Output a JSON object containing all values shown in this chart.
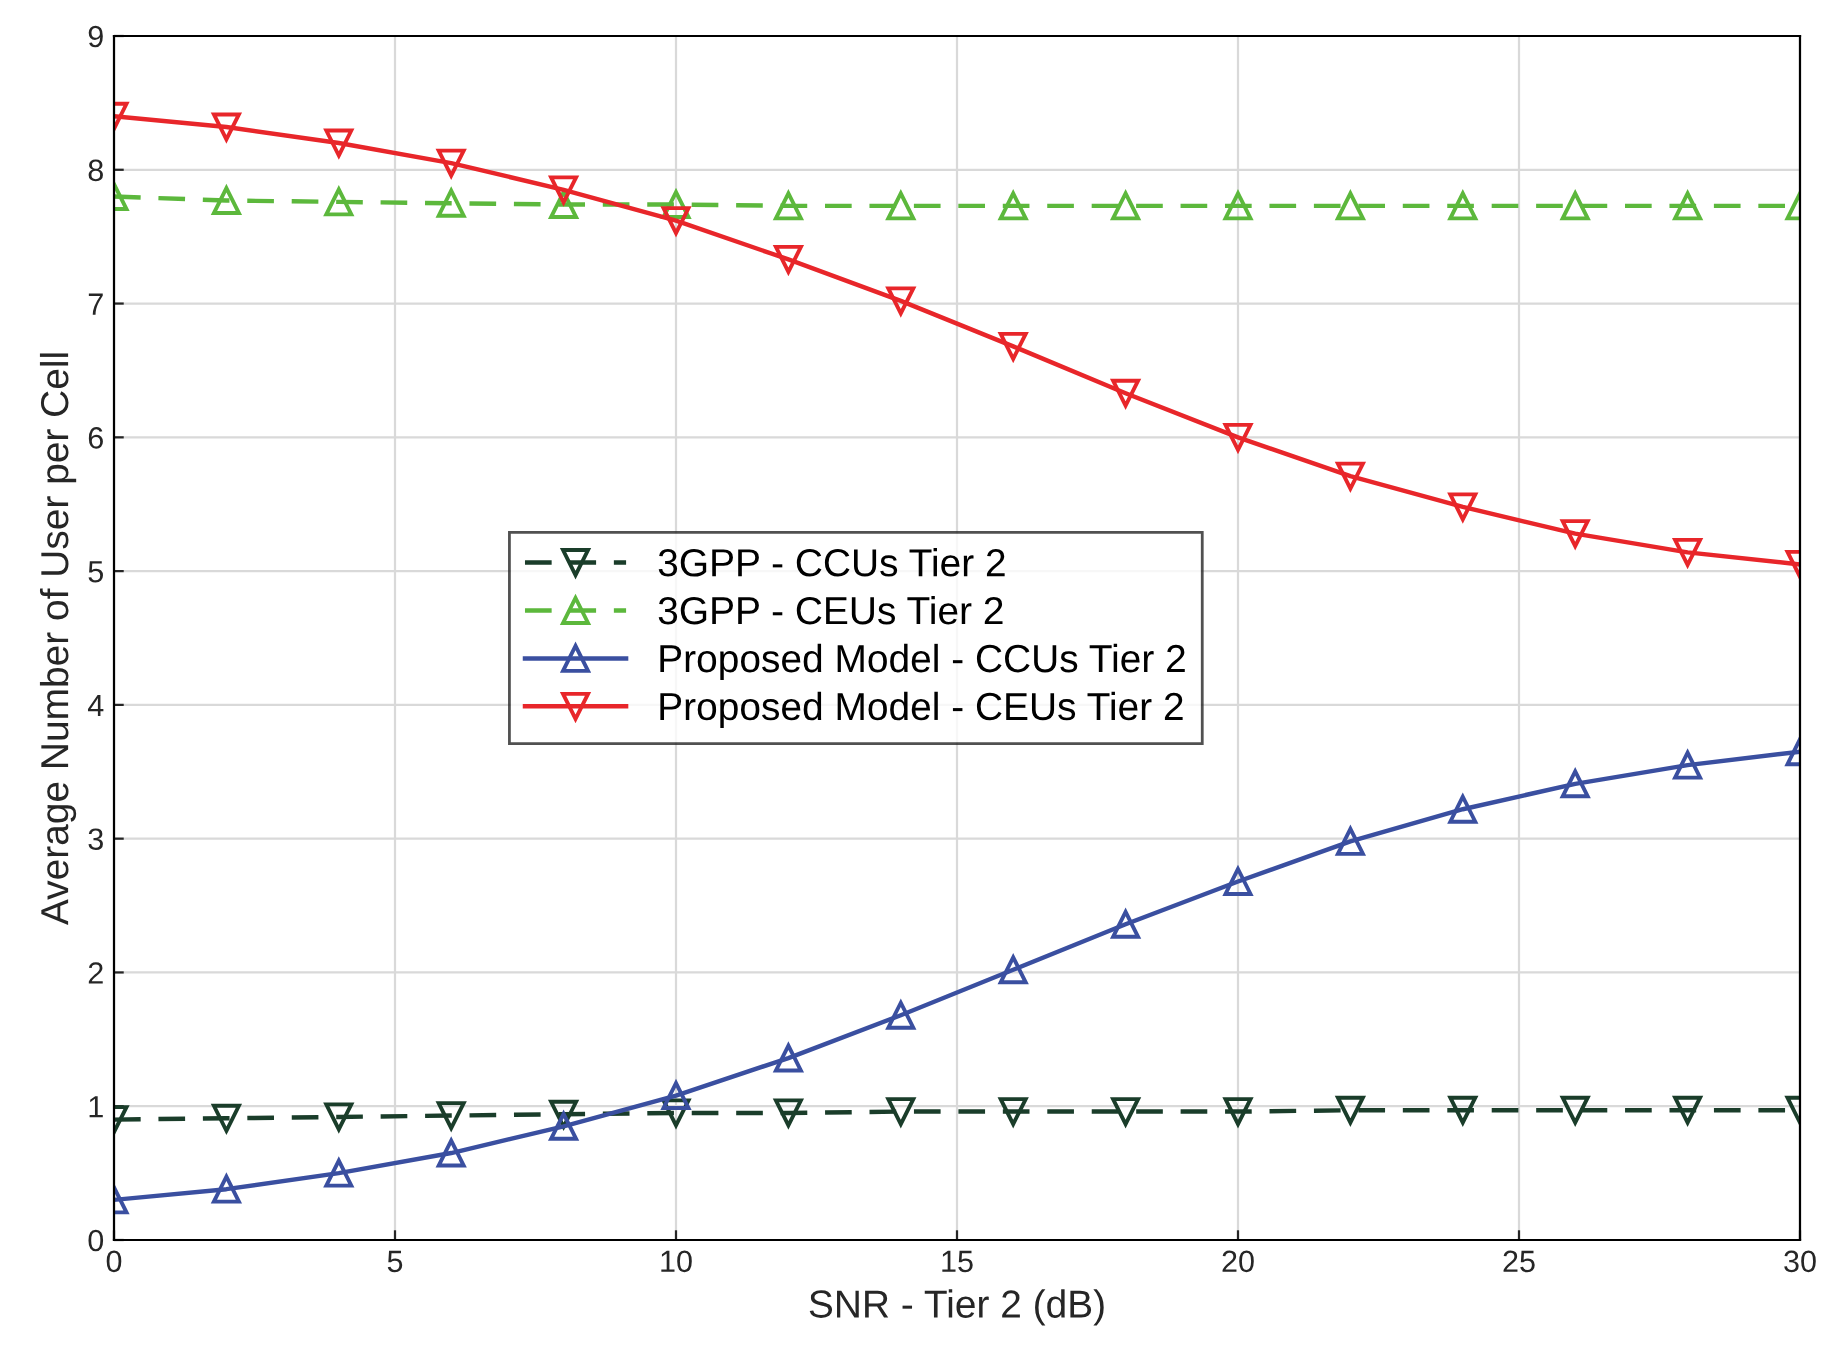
{
  "chart_data": {
    "type": "line",
    "xlabel": "SNR - Tier 2 (dB)",
    "ylabel": "Average Number of User per Cell",
    "x": [
      0,
      2,
      4,
      6,
      8,
      10,
      12,
      14,
      16,
      18,
      20,
      22,
      24,
      26,
      28,
      30
    ],
    "xlim": [
      0,
      30
    ],
    "xticks": [
      0,
      5,
      10,
      15,
      20,
      25,
      30
    ],
    "ylim": [
      0,
      9
    ],
    "yticks": [
      0,
      1,
      2,
      3,
      4,
      5,
      6,
      7,
      8,
      9
    ],
    "grid": true,
    "legend": "center",
    "series": [
      {
        "name": "3GPP - CCUs Tier 2",
        "color": "#1a3d2a",
        "marker": "triangle_down",
        "line_style": "dashed",
        "values": [
          0.9,
          0.91,
          0.92,
          0.93,
          0.94,
          0.95,
          0.95,
          0.96,
          0.96,
          0.96,
          0.96,
          0.97,
          0.97,
          0.97,
          0.97,
          0.97
        ]
      },
      {
        "name": "3GPP - CEUs Tier 2",
        "color": "#5cb83c",
        "marker": "triangle",
        "line_style": "dashed",
        "values": [
          7.8,
          7.77,
          7.76,
          7.75,
          7.74,
          7.74,
          7.73,
          7.73,
          7.73,
          7.73,
          7.73,
          7.73,
          7.73,
          7.73,
          7.73,
          7.73
        ]
      },
      {
        "name": "Proposed Model - CCUs Tier 2",
        "color": "#3a4fa0",
        "marker": "triangle",
        "line_style": "solid",
        "values": [
          0.3,
          0.38,
          0.5,
          0.65,
          0.85,
          1.08,
          1.36,
          1.68,
          2.02,
          2.36,
          2.68,
          2.98,
          3.22,
          3.41,
          3.55,
          3.65
        ]
      },
      {
        "name": "Proposed Model - CEUs Tier 2",
        "color": "#e8262a",
        "marker": "triangle_down",
        "line_style": "solid",
        "values": [
          8.4,
          8.32,
          8.2,
          8.05,
          7.85,
          7.62,
          7.33,
          7.02,
          6.68,
          6.33,
          6.0,
          5.71,
          5.48,
          5.28,
          5.14,
          5.05
        ]
      }
    ]
  }
}
